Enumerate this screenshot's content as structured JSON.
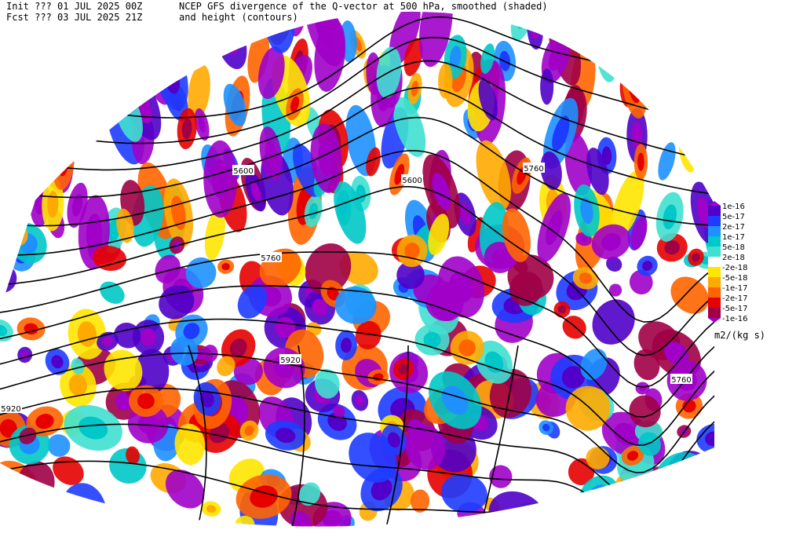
{
  "header": {
    "init": "Init  ??? 01 JUL 2025 00Z",
    "fcst": "Fcst ??? 03 JUL 2025 21Z",
    "title": "NCEP GFS divergence of the Q-vector at 500 hPa, smoothed (shaded)",
    "subtitle": "and height (contours)"
  },
  "contour_labels": [
    "5600",
    "5600",
    "5760",
    "5760",
    "5760",
    "5920",
    "5920"
  ],
  "colorbar": {
    "labels": [
      "1e-16",
      "5e-17",
      "2e-17",
      "1e-17",
      "5e-18",
      "2e-18",
      "-2e-18",
      "-5e-18",
      "-1e-17",
      "-2e-17",
      "-5e-17",
      "-1e-16"
    ],
    "colors": [
      "#a000c8",
      "#5000c8",
      "#1e3cff",
      "#1e90ff",
      "#00c8c8",
      "#40e0d0",
      "#ffffff",
      "#ffe600",
      "#ffaa00",
      "#ff6400",
      "#e60000",
      "#a00046",
      "#a000c8"
    ],
    "units": "m2/(kg s)"
  }
}
